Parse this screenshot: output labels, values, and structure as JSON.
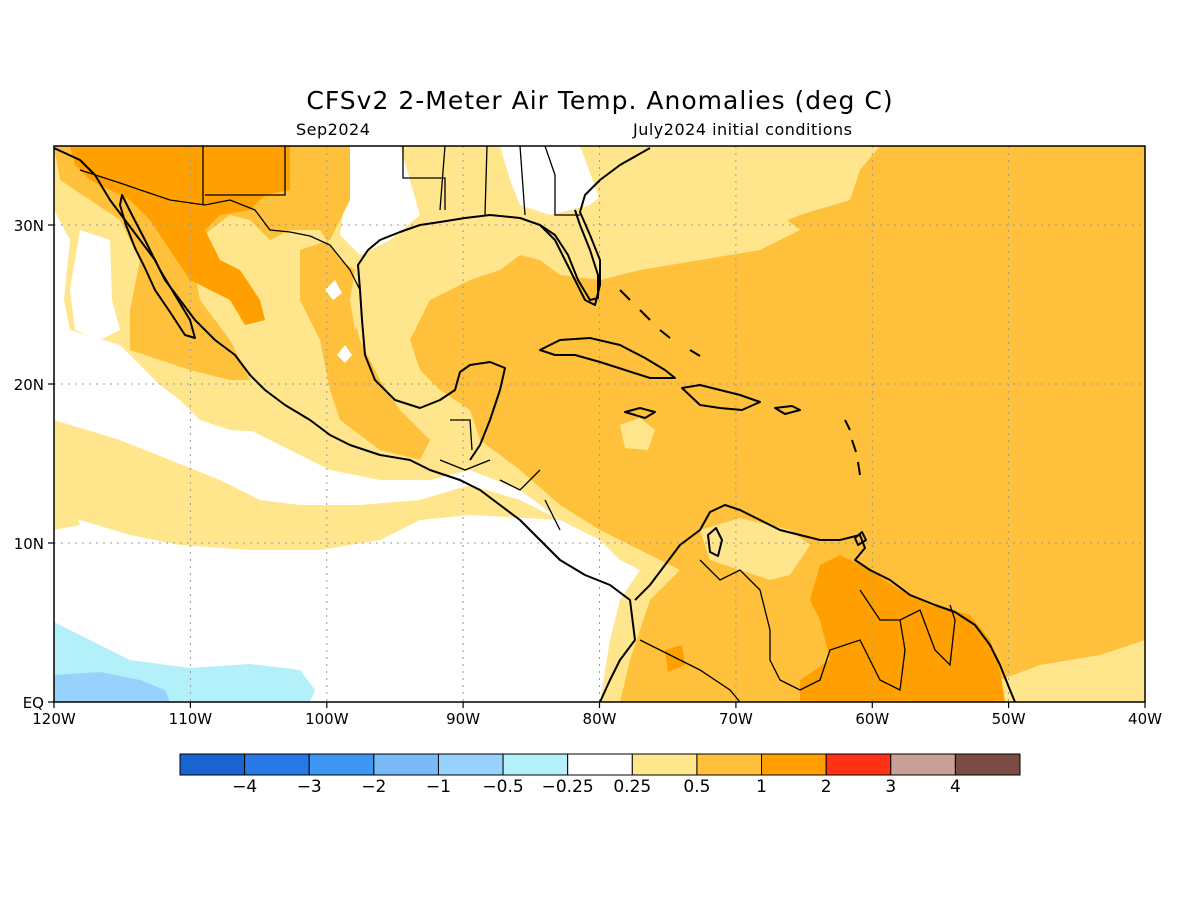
{
  "title": "CFSv2 2-Meter Air Temp. Anomalies (deg C)",
  "valid_month": "Sep2024",
  "initial_conditions": "July2024 initial conditions",
  "axes": {
    "lon_labels": [
      "120W",
      "110W",
      "100W",
      "90W",
      "80W",
      "70W",
      "60W",
      "50W",
      "40W"
    ],
    "lat_labels": [
      "EQ",
      "10N",
      "20N",
      "30N"
    ]
  },
  "colorbar": {
    "colors": [
      "#1a64d2",
      "#2a78e8",
      "#3c96f2",
      "#78b9f7",
      "#96d2fb",
      "#b4f0fa",
      "#ffffff",
      "#ffe68c",
      "#ffc03c",
      "#ffa000",
      "#ff3214",
      "#c8a096",
      "#7a4c44"
    ],
    "labels": [
      "-4",
      "-3",
      "-2",
      "-1",
      "-0.5",
      "-0.25",
      "0.25",
      "0.5",
      "1",
      "2",
      "3",
      "4"
    ]
  },
  "map_colors": {
    "land_border": "#000000",
    "grid": "#9a9a9a"
  }
}
